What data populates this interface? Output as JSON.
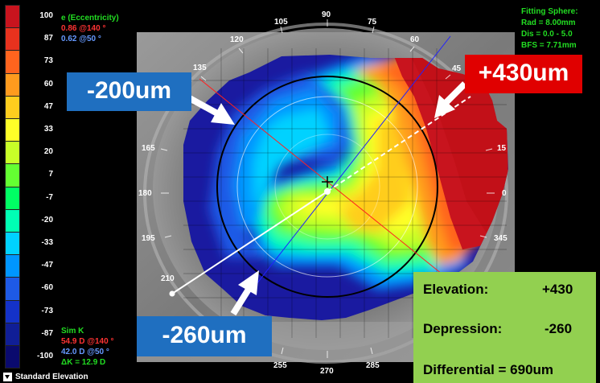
{
  "scale": {
    "values": [
      "100",
      "87",
      "73",
      "60",
      "47",
      "33",
      "20",
      "7",
      "-7",
      "-20",
      "-33",
      "-47",
      "-60",
      "-73",
      "-87",
      "-100"
    ],
    "colors": [
      "#c8141e",
      "#e8321e",
      "#ff641e",
      "#ff9b1e",
      "#ffcd1e",
      "#ffff28",
      "#c8ff28",
      "#64ff32",
      "#00ff64",
      "#00ffb4",
      "#00d2ff",
      "#0096ff",
      "#1e5ae6",
      "#1432c8",
      "#101e96",
      "#0a0a6e"
    ]
  },
  "eccentricity": {
    "label": "e (Eccentricity)",
    "red": "0.86 @140 °",
    "blue": "0.62 @50 °"
  },
  "fitting_sphere": {
    "title": "Fitting Sphere:",
    "rad": "Rad = 8.00mm",
    "dis": "Dis = 0.0 - 5.0",
    "bfs": "BFS = 7.71mm"
  },
  "simk": {
    "label": "Sim K",
    "red": "54.9 D @140 °",
    "blue": "42.0 D @50 °",
    "dk": "ΔK = 12.9 D"
  },
  "footer": {
    "label": "Standard Elevation"
  },
  "angles": {
    "a90": "90",
    "a105": "105",
    "a75": "75",
    "a120": "120",
    "a60": "60",
    "a135": "135",
    "a45": "45",
    "a165": "165",
    "a15": "15",
    "a180": "180",
    "a0": "0",
    "a195": "195",
    "a345": "345",
    "a210": "210",
    "a255": "255",
    "a270": "270",
    "a285": "285"
  },
  "callouts": {
    "minus200": "-200um",
    "plus430": "+430um",
    "minus260": "-260um"
  },
  "summary": {
    "elevation_label": "Elevation:",
    "elevation_value": "+430",
    "depression_label": "Depression:",
    "depression_value": "-260",
    "differential": "Differential = 690um"
  },
  "colors": {
    "green_text": "#22dd22",
    "red_text": "#ff3333",
    "blue_text": "#6699ff",
    "callout_blue": "#1f6fc0",
    "callout_red": "#e00000",
    "summary_bg": "#92d050"
  }
}
